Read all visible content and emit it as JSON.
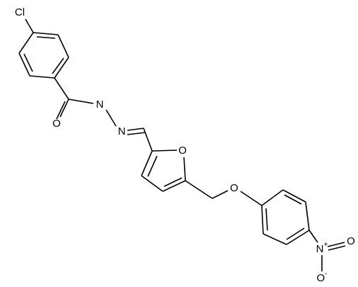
{
  "atoms": [
    {
      "label": "Cl"
    },
    {
      "label": "O"
    },
    {
      "label": "N"
    },
    {
      "label": "N"
    },
    {
      "label": "O"
    },
    {
      "label": "O"
    },
    {
      "label": "N",
      "charge": "+"
    },
    {
      "label": "O"
    },
    {
      "label": "O",
      "charge": "-"
    }
  ]
}
